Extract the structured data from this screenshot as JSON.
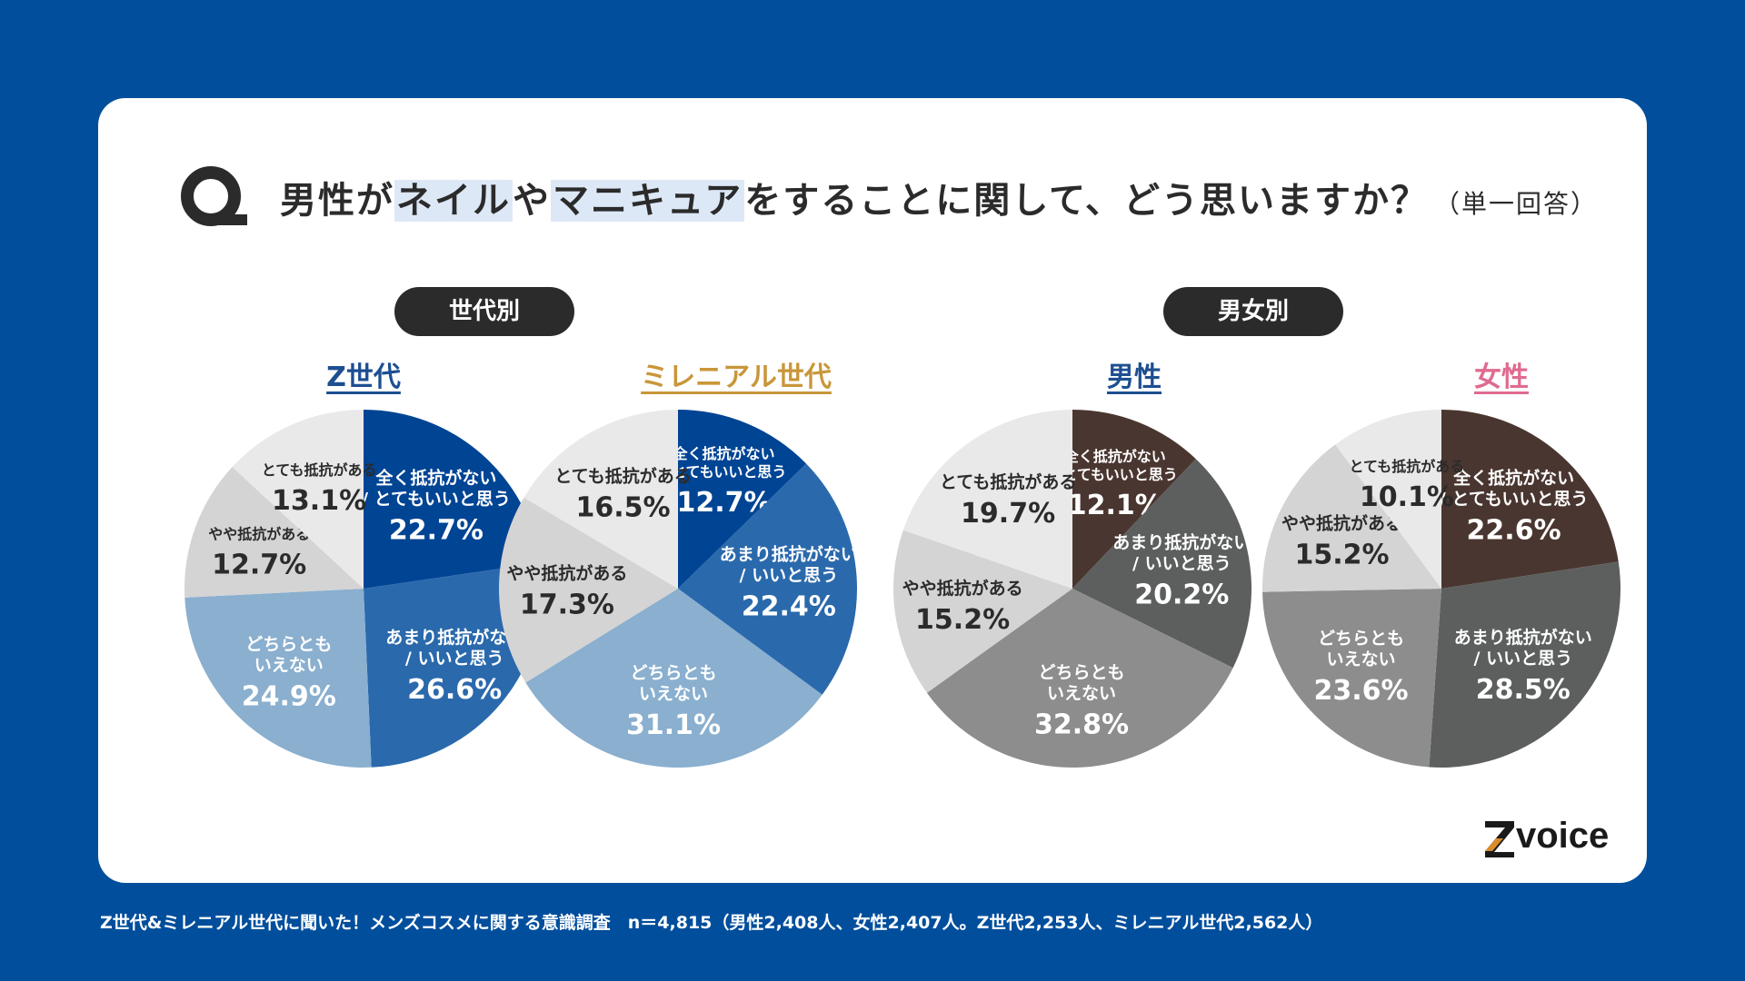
{
  "question": {
    "before": "男性が",
    "hl1": "ネイル",
    "mid": "や",
    "hl2": "マニキュア",
    "after": "をすることに関して、どう思いますか？",
    "note": "（単一回答）"
  },
  "sections": {
    "generation": "世代別",
    "gender": "男女別"
  },
  "colors": {
    "background": "#004e9c",
    "title_z": "#1d4f91",
    "title_millennial": "#c9963a",
    "title_male": "#1d4f91",
    "title_female": "#e06b8f"
  },
  "chart_data": [
    {
      "type": "pie",
      "title": "Z世代",
      "start_angle_deg": 0,
      "direction": "clockwise",
      "slices": [
        {
          "label": "全く抵抗がない\n/ とてもいいと思う",
          "value": 22.7,
          "display": "22.7%",
          "color": "#004494",
          "text_color": "#ffffff"
        },
        {
          "label": "あまり抵抗がない\n/ いいと思う",
          "value": 26.6,
          "display": "26.6%",
          "color": "#2a69ac",
          "text_color": "#ffffff"
        },
        {
          "label": "どちらとも\nいえない",
          "value": 24.9,
          "display": "24.9%",
          "color": "#8aafcf",
          "text_color": "#ffffff"
        },
        {
          "label": "やや抵抗がある",
          "value": 12.7,
          "display": "12.7%",
          "color": "#d4d4d4",
          "text_color": "#2b2b2b"
        },
        {
          "label": "とても抵抗がある",
          "value": 13.1,
          "display": "13.1%",
          "color": "#e9e9e9",
          "text_color": "#2b2b2b"
        }
      ]
    },
    {
      "type": "pie",
      "title": "ミレニアル世代",
      "start_angle_deg": 0,
      "direction": "clockwise",
      "slices": [
        {
          "label": "全く抵抗がない\n/ とてもいいと思う",
          "value": 12.7,
          "display": "12.7%",
          "color": "#004494",
          "text_color": "#ffffff"
        },
        {
          "label": "あまり抵抗がない\n/ いいと思う",
          "value": 22.4,
          "display": "22.4%",
          "color": "#2a69ac",
          "text_color": "#ffffff"
        },
        {
          "label": "どちらとも\nいえない",
          "value": 31.1,
          "display": "31.1%",
          "color": "#8aafcf",
          "text_color": "#ffffff"
        },
        {
          "label": "やや抵抗がある",
          "value": 17.3,
          "display": "17.3%",
          "color": "#d4d4d4",
          "text_color": "#2b2b2b"
        },
        {
          "label": "とても抵抗がある",
          "value": 16.5,
          "display": "16.5%",
          "color": "#e9e9e9",
          "text_color": "#2b2b2b"
        }
      ]
    },
    {
      "type": "pie",
      "title": "男性",
      "start_angle_deg": 0,
      "direction": "clockwise",
      "slices": [
        {
          "label": "全く抵抗がない\n/ とてもいいと思う",
          "value": 12.1,
          "display": "12.1%",
          "color": "#4a3630",
          "text_color": "#ffffff"
        },
        {
          "label": "あまり抵抗がない\n/ いいと思う",
          "value": 20.2,
          "display": "20.2%",
          "color": "#5c5f5d",
          "text_color": "#ffffff"
        },
        {
          "label": "どちらとも\nいえない",
          "value": 32.8,
          "display": "32.8%",
          "color": "#8d8d8d",
          "text_color": "#ffffff"
        },
        {
          "label": "やや抵抗がある",
          "value": 15.2,
          "display": "15.2%",
          "color": "#d4d4d4",
          "text_color": "#2b2b2b"
        },
        {
          "label": "とても抵抗がある",
          "value": 19.7,
          "display": "19.7%",
          "color": "#e9e9e9",
          "text_color": "#2b2b2b"
        }
      ]
    },
    {
      "type": "pie",
      "title": "女性",
      "start_angle_deg": 0,
      "direction": "clockwise",
      "slices": [
        {
          "label": "全く抵抗がない\n/ とてもいいと思う",
          "value": 22.6,
          "display": "22.6%",
          "color": "#4a3630",
          "text_color": "#ffffff"
        },
        {
          "label": "あまり抵抗がない\n/ いいと思う",
          "value": 28.5,
          "display": "28.5%",
          "color": "#5c5f5d",
          "text_color": "#ffffff"
        },
        {
          "label": "どちらとも\nいえない",
          "value": 23.6,
          "display": "23.6%",
          "color": "#8d8d8d",
          "text_color": "#ffffff"
        },
        {
          "label": "やや抵抗がある",
          "value": 15.2,
          "display": "15.2%",
          "color": "#d4d4d4",
          "text_color": "#2b2b2b"
        },
        {
          "label": "とても抵抗がある",
          "value": 10.1,
          "display": "10.1%",
          "color": "#e9e9e9",
          "text_color": "#2b2b2b"
        }
      ]
    }
  ],
  "logo": {
    "letter": "Z",
    "text": "voice"
  },
  "footer": "Z世代&ミレニアル世代に聞いた！メンズコスメに関する意識調査　n＝4,815（男性2,408人、女性2,407人。Z世代2,253人、ミレニアル世代2,562人）"
}
